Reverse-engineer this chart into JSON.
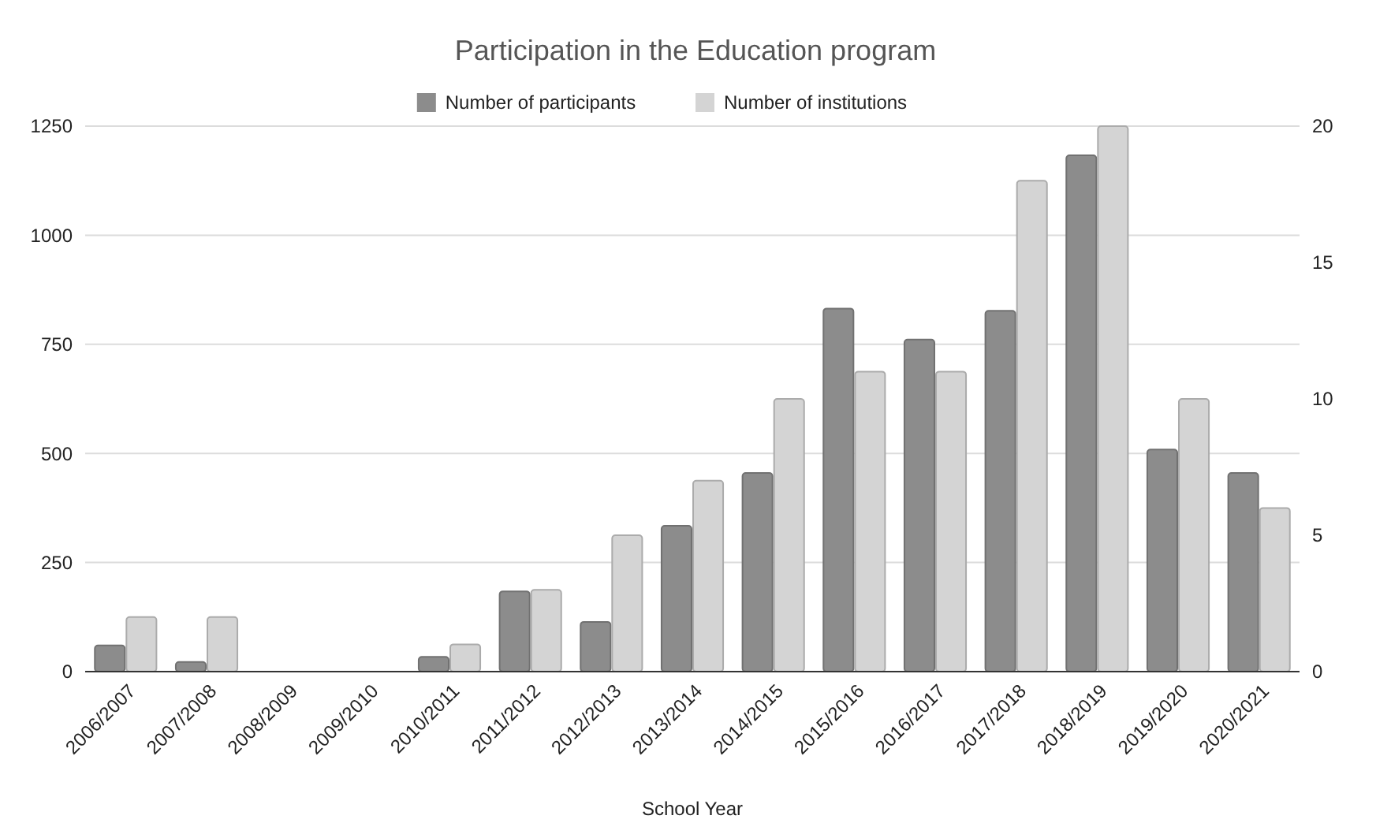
{
  "chart_data": {
    "type": "bar",
    "title": "Participation in the Education program",
    "xlabel": "School Year",
    "categories": [
      "2006/2007",
      "2007/2008",
      "2008/2009",
      "2009/2010",
      "2010/2011",
      "2011/2012",
      "2012/2013",
      "2013/2014",
      "2014/2015",
      "2015/2016",
      "2016/2017",
      "2017/2018",
      "2018/2019",
      "2019/2020",
      "2020/2021"
    ],
    "series": [
      {
        "name": "Number of participants",
        "color": "#8c8c8c",
        "values": [
          60,
          22,
          0,
          0,
          34,
          184,
          114,
          334,
          455,
          832,
          761,
          827,
          1183,
          509,
          455
        ]
      },
      {
        "name": "Number of institutions",
        "color": "#d4d4d4",
        "axis": "y2",
        "values": [
          2,
          2,
          0,
          0,
          1,
          3,
          5,
          7,
          10,
          11,
          11,
          18,
          20,
          10,
          6
        ]
      }
    ],
    "ylim": [
      0,
      1250
    ],
    "yticks": [
      0,
      250,
      500,
      750,
      1000,
      1250
    ],
    "y2lim": [
      0,
      20
    ],
    "y2ticks": [
      0,
      5,
      10,
      15,
      20
    ],
    "grid": "y",
    "legend": "top"
  }
}
